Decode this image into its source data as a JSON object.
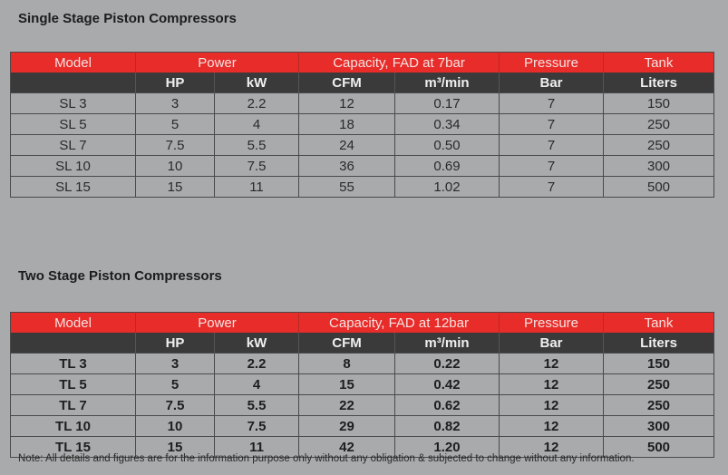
{
  "single_stage": {
    "title": "Single Stage Piston Compressors",
    "header_top": {
      "model": "Model",
      "power": "Power",
      "capacity": "Capacity, FAD at 7bar",
      "pressure": "Pressure",
      "tank": "Tank"
    },
    "header_sub": {
      "model": "",
      "hp": "HP",
      "kw": "kW",
      "cfm": "CFM",
      "m3min": "m³/min",
      "bar": "Bar",
      "liters": "Liters"
    },
    "rows": [
      {
        "model": "SL 3",
        "hp": "3",
        "kw": "2.2",
        "cfm": "12",
        "m3min": "0.17",
        "bar": "7",
        "liters": "150"
      },
      {
        "model": "SL 5",
        "hp": "5",
        "kw": "4",
        "cfm": "18",
        "m3min": "0.34",
        "bar": "7",
        "liters": "250"
      },
      {
        "model": "SL 7",
        "hp": "7.5",
        "kw": "5.5",
        "cfm": "24",
        "m3min": "0.50",
        "bar": "7",
        "liters": "250"
      },
      {
        "model": "SL 10",
        "hp": "10",
        "kw": "7.5",
        "cfm": "36",
        "m3min": "0.69",
        "bar": "7",
        "liters": "300"
      },
      {
        "model": "SL 15",
        "hp": "15",
        "kw": "11",
        "cfm": "55",
        "m3min": "1.02",
        "bar": "7",
        "liters": "500"
      }
    ]
  },
  "two_stage": {
    "title": "Two Stage Piston Compressors",
    "header_top": {
      "model": "Model",
      "power": "Power",
      "capacity": "Capacity, FAD at 12bar",
      "pressure": "Pressure",
      "tank": "Tank"
    },
    "header_sub": {
      "model": "",
      "hp": "HP",
      "kw": "kW",
      "cfm": "CFM",
      "m3min": "m³/min",
      "bar": "Bar",
      "liters": "Liters"
    },
    "rows": [
      {
        "model": "TL 3",
        "hp": "3",
        "kw": "2.2",
        "cfm": "8",
        "m3min": "0.22",
        "bar": "12",
        "liters": "150"
      },
      {
        "model": "TL 5",
        "hp": "5",
        "kw": "4",
        "cfm": "15",
        "m3min": "0.42",
        "bar": "12",
        "liters": "250"
      },
      {
        "model": "TL 7",
        "hp": "7.5",
        "kw": "5.5",
        "cfm": "22",
        "m3min": "0.62",
        "bar": "12",
        "liters": "250"
      },
      {
        "model": "TL 10",
        "hp": "10",
        "kw": "7.5",
        "cfm": "29",
        "m3min": "0.82",
        "bar": "12",
        "liters": "300"
      },
      {
        "model": "TL 15",
        "hp": "15",
        "kw": "11",
        "cfm": "42",
        "m3min": "1.20",
        "bar": "12",
        "liters": "500"
      }
    ]
  },
  "note": "Note: All details and figures are for the information purpose only without any obligation & subjected to change without any information.",
  "colors": {
    "background": "#a9aaac",
    "header_red": "#e82c2a",
    "header_dark": "#3a3a3a"
  }
}
